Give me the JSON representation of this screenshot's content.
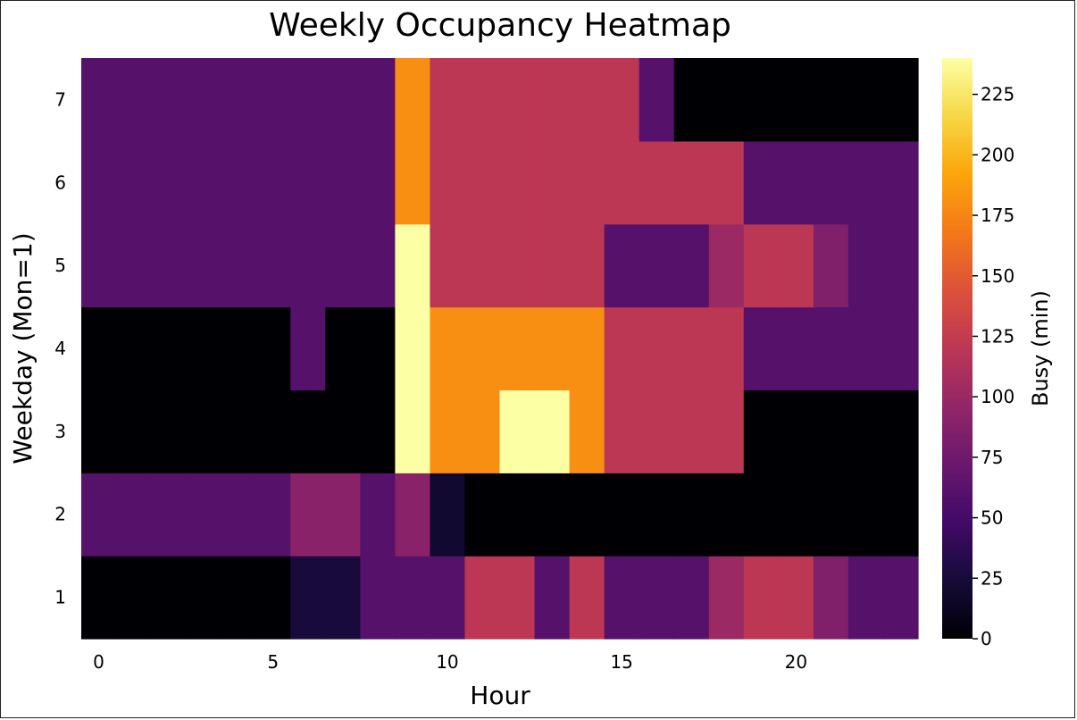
{
  "chart_data": {
    "type": "heatmap",
    "title": "Weekly Occupancy Heatmap",
    "xlabel": "Hour",
    "ylabel": "Weekday (Mon=1)",
    "colorbar_label": "Busy (min)",
    "x": [
      0,
      1,
      2,
      3,
      4,
      5,
      6,
      7,
      8,
      9,
      10,
      11,
      12,
      13,
      14,
      15,
      16,
      17,
      18,
      19,
      20,
      21,
      22,
      23
    ],
    "y": [
      1,
      2,
      3,
      4,
      5,
      6,
      7
    ],
    "xlim": [
      -0.5,
      23.5
    ],
    "ylim": [
      0.5,
      7.5
    ],
    "x_ticks": [
      0,
      5,
      10,
      15,
      20
    ],
    "y_ticks": [
      1,
      2,
      3,
      4,
      5,
      6,
      7
    ],
    "color_range": [
      0,
      240
    ],
    "colorbar_ticks": [
      0,
      25,
      50,
      75,
      100,
      125,
      150,
      175,
      200,
      225
    ],
    "colormap": "inferno",
    "z": [
      [
        0,
        0,
        0,
        0,
        0,
        0,
        25,
        25,
        60,
        60,
        60,
        120,
        120,
        60,
        120,
        60,
        60,
        60,
        100,
        120,
        120,
        85,
        60,
        60
      ],
      [
        60,
        60,
        60,
        60,
        60,
        60,
        90,
        90,
        60,
        90,
        20,
        0,
        0,
        0,
        0,
        0,
        0,
        0,
        0,
        0,
        0,
        0,
        0,
        0
      ],
      [
        0,
        0,
        0,
        0,
        0,
        0,
        0,
        0,
        0,
        240,
        180,
        180,
        240,
        240,
        180,
        120,
        120,
        120,
        120,
        0,
        0,
        0,
        0,
        0
      ],
      [
        0,
        0,
        0,
        0,
        0,
        0,
        60,
        0,
        0,
        240,
        180,
        180,
        180,
        180,
        180,
        120,
        120,
        120,
        120,
        60,
        60,
        60,
        60,
        60
      ],
      [
        60,
        60,
        60,
        60,
        60,
        60,
        60,
        60,
        60,
        240,
        120,
        120,
        120,
        120,
        120,
        60,
        60,
        60,
        100,
        120,
        120,
        85,
        60,
        60
      ],
      [
        60,
        60,
        60,
        60,
        60,
        60,
        60,
        60,
        60,
        180,
        120,
        120,
        120,
        120,
        120,
        120,
        120,
        120,
        120,
        60,
        60,
        60,
        60,
        60
      ],
      [
        60,
        60,
        60,
        60,
        60,
        60,
        60,
        60,
        60,
        180,
        120,
        120,
        120,
        120,
        120,
        120,
        60,
        0,
        0,
        0,
        0,
        0,
        0,
        0
      ]
    ]
  }
}
